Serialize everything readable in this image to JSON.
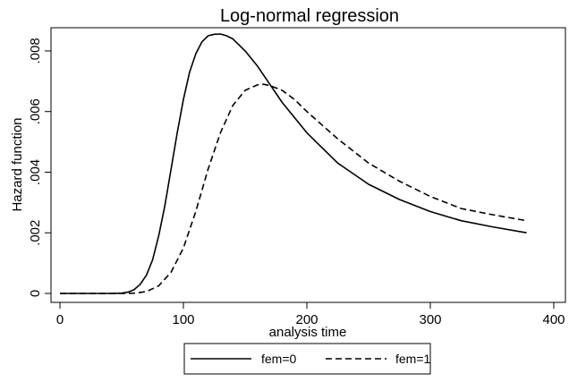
{
  "chart_data": {
    "type": "line",
    "title": "Log-normal regression",
    "xlabel": "analysis time",
    "ylabel": "Hazard function",
    "xlim": [
      0,
      400
    ],
    "ylim": [
      0,
      0.0085
    ],
    "x_ticks": [
      {
        "value": 0,
        "label": "0"
      },
      {
        "value": 100,
        "label": "100"
      },
      {
        "value": 200,
        "label": "200"
      },
      {
        "value": 300,
        "label": "300"
      },
      {
        "value": 400,
        "label": "400"
      }
    ],
    "y_ticks": [
      {
        "value": 0,
        "label": "0"
      },
      {
        "value": 0.002,
        "label": ".002"
      },
      {
        "value": 0.004,
        "label": ".004"
      },
      {
        "value": 0.006,
        "label": ".006"
      },
      {
        "value": 0.008,
        "label": ".008"
      }
    ],
    "grid": false,
    "legend_position": "bottom",
    "series": [
      {
        "name": "fem=0",
        "line_style": "solid",
        "x": [
          0,
          40,
          50,
          55,
          60,
          65,
          70,
          75,
          80,
          85,
          90,
          95,
          100,
          105,
          110,
          115,
          120,
          125,
          130,
          135,
          140,
          145,
          150,
          160,
          170,
          180,
          200,
          225,
          250,
          275,
          300,
          325,
          350,
          378
        ],
        "y": [
          0,
          0,
          1e-05,
          4e-05,
          0.00012,
          0.0003,
          0.0006,
          0.0011,
          0.0019,
          0.0029,
          0.0041,
          0.0053,
          0.0064,
          0.0073,
          0.0079,
          0.0083,
          0.0085,
          0.00855,
          0.00856,
          0.0085,
          0.0084,
          0.0082,
          0.008,
          0.0075,
          0.0069,
          0.0063,
          0.0053,
          0.0043,
          0.0036,
          0.0031,
          0.0027,
          0.0024,
          0.0022,
          0.002
        ]
      },
      {
        "name": "fem=1",
        "line_style": "dashed",
        "x": [
          0,
          50,
          60,
          70,
          80,
          90,
          100,
          110,
          120,
          130,
          140,
          150,
          160,
          165,
          170,
          180,
          190,
          200,
          225,
          250,
          275,
          300,
          325,
          350,
          378
        ],
        "y": [
          0,
          0,
          1e-05,
          6e-05,
          0.00025,
          0.0007,
          0.0015,
          0.0027,
          0.0041,
          0.0053,
          0.0062,
          0.0067,
          0.00688,
          0.0069,
          0.00686,
          0.0067,
          0.0064,
          0.006,
          0.0051,
          0.0043,
          0.0037,
          0.0032,
          0.0028,
          0.0026,
          0.0024
        ]
      }
    ]
  }
}
